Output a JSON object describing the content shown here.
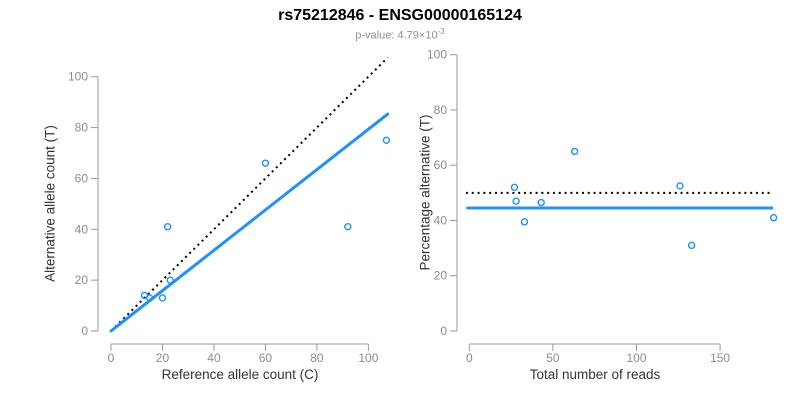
{
  "header": {
    "title": "rs75212846 - ENSG00000165124",
    "subtitle_prefix": "p-value: ",
    "pvalue_mantissa": "4.79",
    "times_symbol": "×",
    "pvalue_base": "10",
    "pvalue_exponent": "-3"
  },
  "colors": {
    "accent_blue": "#1E90FF",
    "dotted_line": "#000000",
    "axis_gray": "#9a9a9a",
    "tick_label_gray": "#8c8c8c",
    "axis_label_dark": "#333333",
    "subtitle_gray": "#909090"
  },
  "chart_data": [
    {
      "type": "scatter",
      "xlabel": "Reference allele count (C)",
      "ylabel": "Alternative allele count (T)",
      "xticks": [
        0,
        20,
        40,
        60,
        80,
        100
      ],
      "yticks": [
        0,
        20,
        40,
        60,
        80,
        100
      ],
      "xlim": [
        0,
        108
      ],
      "ylim": [
        0,
        108
      ],
      "grid": false,
      "legend": false,
      "points": [
        [
          13,
          14
        ],
        [
          15,
          13
        ],
        [
          20,
          13
        ],
        [
          23,
          20
        ],
        [
          22,
          41
        ],
        [
          60,
          66
        ],
        [
          92,
          41
        ],
        [
          107,
          75
        ]
      ],
      "point_color": "#1E90FF",
      "lines": [
        {
          "name": "identity-line",
          "style": "dotted",
          "color": "#000000",
          "from": [
            0,
            0
          ],
          "to": [
            107.5,
            107.5
          ]
        },
        {
          "name": "fit-line",
          "style": "solid",
          "color": "#1E90FF",
          "from": [
            0,
            0
          ],
          "to": [
            107.5,
            85.3
          ]
        }
      ]
    },
    {
      "type": "scatter",
      "xlabel": "Total number of reads",
      "ylabel": "Percentage alternative (T)",
      "xticks": [
        0,
        50,
        100,
        150
      ],
      "yticks": [
        0,
        20,
        40,
        60,
        80,
        100
      ],
      "xlim": [
        0,
        182
      ],
      "ylim": [
        0,
        100
      ],
      "grid": false,
      "legend": false,
      "points": [
        [
          27,
          52
        ],
        [
          28,
          47
        ],
        [
          33,
          39.5
        ],
        [
          43,
          46.5
        ],
        [
          63,
          65
        ],
        [
          126,
          52.5
        ],
        [
          133,
          31
        ],
        [
          182,
          41
        ]
      ],
      "point_color": "#1E90FF",
      "lines": [
        {
          "name": "expected-50pct-line",
          "style": "dotted",
          "color": "#000000",
          "from": [
            -2,
            50
          ],
          "to": [
            181,
            50
          ]
        },
        {
          "name": "mean-line",
          "style": "solid",
          "color": "#1E90FF",
          "from": [
            -1,
            44.5
          ],
          "to": [
            181,
            44.5
          ]
        }
      ]
    }
  ]
}
